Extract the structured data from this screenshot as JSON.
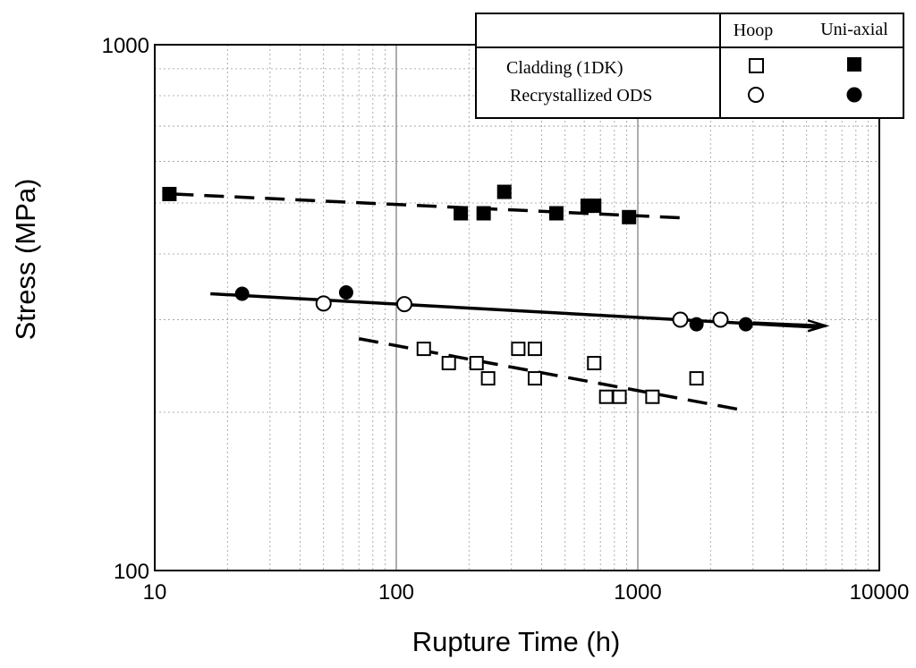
{
  "chart_data": {
    "type": "scatter",
    "xlabel": "Rupture Time (h)",
    "ylabel": "Stress (MPa)",
    "xscale": "log",
    "yscale": "log",
    "xlim": [
      10,
      10000
    ],
    "ylim": [
      100,
      1000
    ],
    "x_tick_labels": [
      "10",
      "100",
      "1000",
      "10000"
    ],
    "y_tick_labels": [
      "100",
      "1000"
    ],
    "grid": true,
    "legend_placement": "top-right",
    "legend": {
      "column_headers": [
        "Hoop",
        "Uni-axial"
      ],
      "rows": [
        "Cladding (1DK)",
        "Recrystallized ODS"
      ]
    },
    "series": [
      {
        "legend_row": 0,
        "test": "hoop",
        "marker": "open-square",
        "points": [
          [
            130,
            264
          ],
          [
            165,
            248
          ],
          [
            215,
            248
          ],
          [
            240,
            232
          ],
          [
            320,
            264
          ],
          [
            375,
            264
          ],
          [
            375,
            232
          ],
          [
            660,
            248
          ],
          [
            740,
            214
          ],
          [
            840,
            214
          ],
          [
            1150,
            214
          ],
          [
            1750,
            232
          ]
        ]
      },
      {
        "legend_row": 0,
        "test": "uniaxial",
        "marker": "filled-square",
        "points": [
          [
            11.5,
            520
          ],
          [
            185,
            478
          ],
          [
            230,
            478
          ],
          [
            280,
            525
          ],
          [
            460,
            478
          ],
          [
            620,
            494
          ],
          [
            660,
            494
          ],
          [
            920,
            470
          ]
        ]
      },
      {
        "legend_row": 1,
        "test": "hoop",
        "marker": "open-circle",
        "points": [
          [
            50,
            322
          ],
          [
            108,
            321
          ],
          [
            1500,
            300
          ],
          [
            2200,
            300
          ]
        ]
      },
      {
        "legend_row": 1,
        "test": "uniaxial",
        "marker": "filled-circle",
        "points": [
          [
            23,
            336
          ],
          [
            62,
            338
          ],
          [
            1750,
            294
          ],
          [
            2800,
            294
          ]
        ]
      }
    ],
    "trend_lines": [
      {
        "name": "cladding-uniaxial-fit",
        "style": "dashed",
        "points": [
          [
            12,
            520
          ],
          [
            1600,
            468
          ]
        ]
      },
      {
        "name": "ods-fit",
        "style": "solid",
        "points": [
          [
            17,
            336
          ],
          [
            5600,
            290
          ]
        ]
      },
      {
        "name": "cladding-hoop-fit",
        "style": "dashed",
        "points": [
          [
            70,
            276
          ],
          [
            2700,
            202
          ]
        ]
      }
    ],
    "arrow": {
      "from": [
        3000,
        296
      ],
      "to": [
        6000,
        292
      ]
    }
  }
}
